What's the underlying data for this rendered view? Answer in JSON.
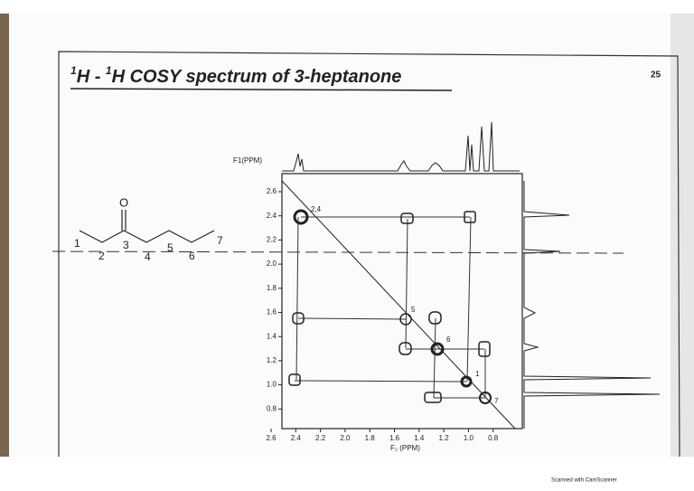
{
  "header": {
    "title_sup_1": "1",
    "title_part_1": "H - ",
    "title_sup_2": "1",
    "title_part_2": "H COSY spectrum of 3-heptanone",
    "page_number": "25"
  },
  "structure": {
    "oxygen": "O",
    "carbons": [
      "1",
      "2",
      "3",
      "4",
      "5",
      "6",
      "7"
    ]
  },
  "spectrum": {
    "f1_label": "F1(PPM)",
    "f2_label": "F₂ (PPM)",
    "f1_ticks": [
      "2.6",
      "2.4",
      "2.2",
      "2.0",
      "1.8",
      "1.6",
      "1.4",
      "1.2",
      "1.0",
      "0.8"
    ],
    "f2_ticks": [
      "2.6",
      "2.4",
      "2.2",
      "2.0",
      "1.8",
      "1.6",
      "1.4",
      "1.2",
      "1.0",
      "0.8"
    ],
    "peak_labels": [
      "2,4",
      "5",
      "6",
      "1",
      "7"
    ]
  },
  "footer": {
    "scanner_note": "Scanned with CamScanner"
  }
}
